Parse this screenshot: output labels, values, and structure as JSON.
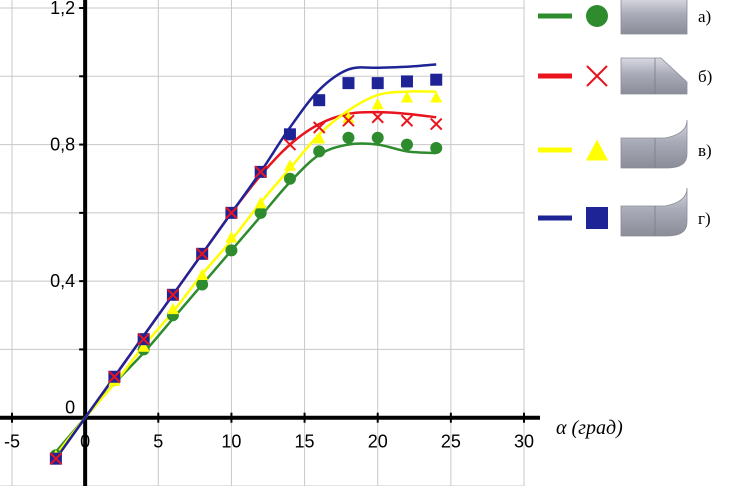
{
  "chart_data": {
    "type": "line",
    "title": "",
    "xlabel": "α (град)",
    "ylabel": "",
    "xlim": [
      -5,
      30
    ],
    "ylim": [
      -0.2,
      1.2
    ],
    "grid": true,
    "legend_position": "right",
    "x_ticks": [
      "-5",
      "0",
      "5",
      "10",
      "15",
      "20",
      "25",
      "30"
    ],
    "y_ticks": [
      "0",
      "0,4",
      "0,8",
      "1,2"
    ],
    "series": [
      {
        "name": "а)",
        "color": "#2e8b2e",
        "marker": "circle",
        "shape": "flat-end-cylinder",
        "points_x": [
          -2,
          2,
          4,
          6,
          8,
          10,
          12,
          14,
          16,
          18,
          20,
          22,
          24
        ],
        "points_y": [
          -0.11,
          0.11,
          0.2,
          0.3,
          0.39,
          0.49,
          0.6,
          0.7,
          0.78,
          0.82,
          0.82,
          0.8,
          0.79
        ],
        "curve_x": [
          -2,
          0,
          2,
          4,
          6,
          8,
          10,
          12,
          14,
          16,
          18,
          20,
          22,
          24
        ],
        "curve_y": [
          -0.1,
          0.0,
          0.1,
          0.19,
          0.29,
          0.39,
          0.49,
          0.59,
          0.69,
          0.77,
          0.8,
          0.8,
          0.78,
          0.775
        ]
      },
      {
        "name": "б)",
        "color": "#e8141e",
        "marker": "cross",
        "shape": "conical-end-cylinder",
        "points_x": [
          -2,
          2,
          4,
          6,
          8,
          10,
          12,
          14,
          16,
          18,
          20,
          22,
          24
        ],
        "points_y": [
          -0.12,
          0.12,
          0.23,
          0.36,
          0.48,
          0.6,
          0.72,
          0.8,
          0.85,
          0.87,
          0.88,
          0.87,
          0.86
        ],
        "curve_x": [
          -2,
          0,
          2,
          4,
          6,
          8,
          10,
          12,
          14,
          16,
          18,
          20,
          22,
          24
        ],
        "curve_y": [
          -0.12,
          0.0,
          0.12,
          0.24,
          0.36,
          0.48,
          0.6,
          0.71,
          0.8,
          0.86,
          0.89,
          0.895,
          0.89,
          0.88
        ]
      },
      {
        "name": "в)",
        "color": "#ffff00",
        "marker": "triangle",
        "shape": "rounded-end-cylinder",
        "points_x": [
          -2,
          2,
          4,
          6,
          8,
          10,
          12,
          14,
          16,
          18,
          20,
          22,
          24
        ],
        "points_y": [
          -0.11,
          0.11,
          0.21,
          0.32,
          0.42,
          0.53,
          0.63,
          0.74,
          0.82,
          0.88,
          0.92,
          0.94,
          0.94
        ],
        "curve_x": [
          -2,
          0,
          2,
          4,
          6,
          8,
          10,
          12,
          14,
          16,
          18,
          20,
          22,
          24
        ],
        "curve_y": [
          -0.11,
          0.0,
          0.1,
          0.21,
          0.31,
          0.42,
          0.52,
          0.63,
          0.73,
          0.83,
          0.9,
          0.945,
          0.955,
          0.955
        ]
      },
      {
        "name": "г)",
        "color": "#1e2496",
        "marker": "square",
        "shape": "rounded-end-cylinder",
        "points_x": [
          -2,
          2,
          4,
          6,
          8,
          10,
          12,
          14,
          16,
          18,
          20,
          22,
          24
        ],
        "points_y": [
          -0.12,
          0.12,
          0.23,
          0.36,
          0.48,
          0.6,
          0.72,
          0.83,
          0.93,
          0.98,
          0.98,
          0.985,
          0.99
        ],
        "curve_x": [
          -2,
          0,
          2,
          4,
          6,
          8,
          10,
          12,
          14,
          16,
          18,
          20,
          22,
          24
        ],
        "curve_y": [
          -0.12,
          0.0,
          0.12,
          0.24,
          0.36,
          0.48,
          0.6,
          0.72,
          0.85,
          0.96,
          1.02,
          1.025,
          1.028,
          1.035
        ]
      }
    ]
  }
}
